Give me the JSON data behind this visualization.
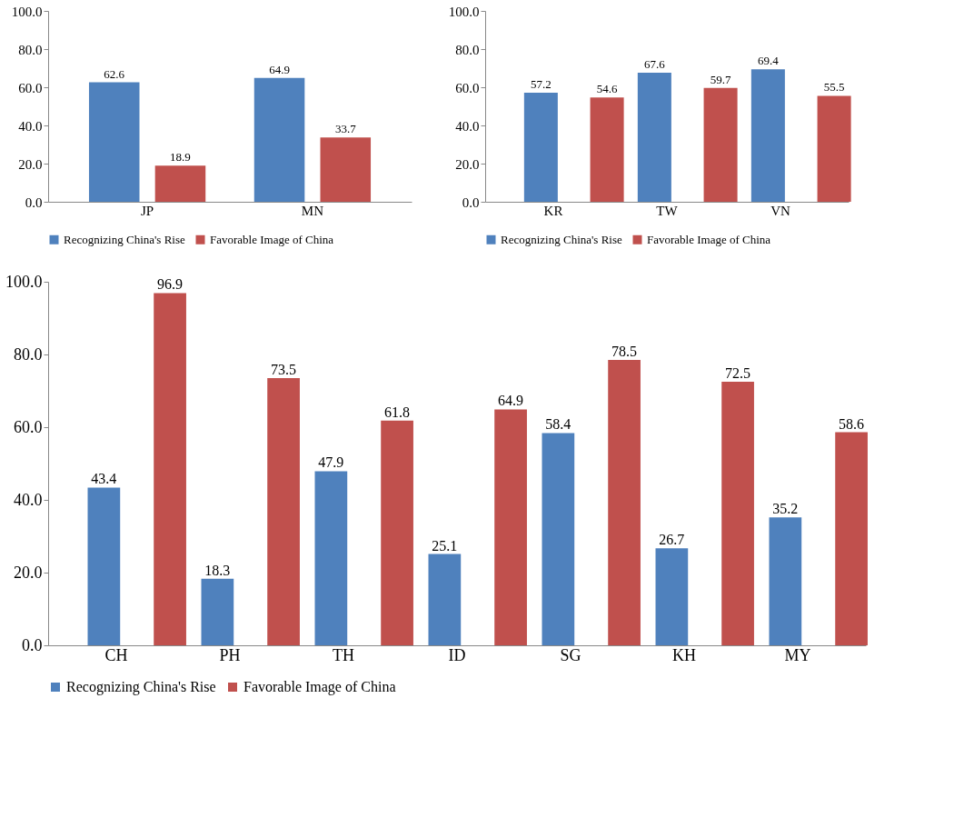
{
  "chart_data": [
    {
      "type": "bar",
      "categories": [
        "JP",
        "MN"
      ],
      "series": [
        {
          "name": "Recognizing China's Rise",
          "color": "#4f81bd",
          "values": [
            62.6,
            64.9
          ]
        },
        {
          "name": "Favorable Image of China",
          "color": "#c0504d",
          "values": [
            18.9,
            33.7
          ]
        }
      ],
      "ylim": [
        0,
        100
      ],
      "yticks": [
        {
          "value": 0,
          "label": "0.0"
        },
        {
          "value": 20,
          "label": "20.0"
        },
        {
          "value": 40,
          "label": "40.0"
        },
        {
          "value": 60,
          "label": "60.0"
        },
        {
          "value": 80,
          "label": "80.0"
        },
        {
          "value": 100,
          "label": "100.0"
        }
      ],
      "data_labels": true,
      "legend": "bottom"
    },
    {
      "type": "bar",
      "categories": [
        "KR",
        "TW",
        "VN"
      ],
      "series": [
        {
          "name": "Recognizing China's Rise",
          "color": "#4f81bd",
          "values": [
            57.2,
            67.6,
            69.4
          ]
        },
        {
          "name": "Favorable Image of China",
          "color": "#c0504d",
          "values": [
            54.6,
            59.7,
            55.5
          ]
        }
      ],
      "ylim": [
        0,
        100
      ],
      "yticks": [
        {
          "value": 0,
          "label": "0.0"
        },
        {
          "value": 20,
          "label": "20.0"
        },
        {
          "value": 40,
          "label": "40.0"
        },
        {
          "value": 60,
          "label": "60.0"
        },
        {
          "value": 80,
          "label": "80.0"
        },
        {
          "value": 100,
          "label": "100.0"
        }
      ],
      "data_labels": true,
      "legend": "bottom"
    },
    {
      "type": "bar",
      "categories": [
        "CH",
        "PH",
        "TH",
        "ID",
        "SG",
        "KH",
        "MY"
      ],
      "series": [
        {
          "name": "Recognizing China's Rise",
          "color": "#4f81bd",
          "values": [
            43.4,
            18.3,
            47.9,
            25.1,
            58.4,
            26.7,
            35.2
          ]
        },
        {
          "name": "Favorable Image of China",
          "color": "#c0504d",
          "values": [
            96.9,
            73.5,
            61.8,
            64.9,
            78.5,
            72.5,
            58.6
          ]
        }
      ],
      "ylim": [
        0,
        100
      ],
      "yticks": [
        {
          "value": 0,
          "label": "0.0"
        },
        {
          "value": 20,
          "label": "20.0"
        },
        {
          "value": 40,
          "label": "40.0"
        },
        {
          "value": 60,
          "label": "60.0"
        },
        {
          "value": 80,
          "label": "80.0"
        },
        {
          "value": 100,
          "label": "100.0"
        }
      ],
      "data_labels": true,
      "legend": "bottom"
    }
  ]
}
